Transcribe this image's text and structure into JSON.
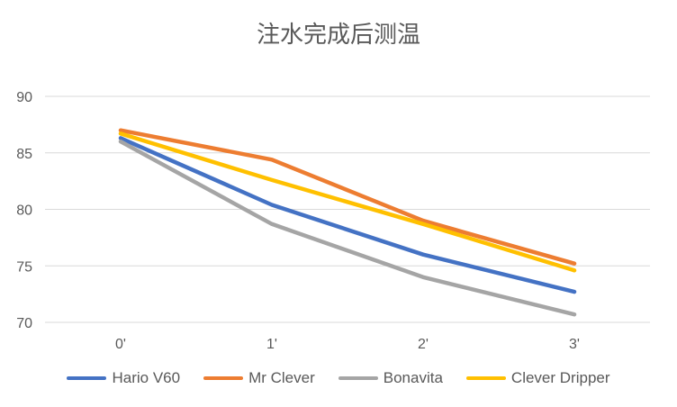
{
  "chart_data": {
    "type": "line",
    "title": "注水完成后测温",
    "categories": [
      "0'",
      "1'",
      "2'",
      "3'"
    ],
    "ylim": [
      70,
      90
    ],
    "yticks": [
      70,
      75,
      80,
      85,
      90
    ],
    "grid": true,
    "legend_position": "bottom",
    "series": [
      {
        "name": "Hario V60",
        "color": "#4472C4",
        "values": [
          86.3,
          80.4,
          76.0,
          72.7
        ]
      },
      {
        "name": "Mr Clever",
        "color": "#ED7D31",
        "values": [
          87.0,
          84.4,
          79.0,
          75.2
        ]
      },
      {
        "name": "Bonavita",
        "color": "#A5A5A5",
        "values": [
          86.0,
          78.7,
          74.0,
          70.7
        ]
      },
      {
        "name": "Clever Dripper",
        "color": "#FFC000",
        "values": [
          86.7,
          82.6,
          78.7,
          74.6
        ]
      }
    ]
  }
}
